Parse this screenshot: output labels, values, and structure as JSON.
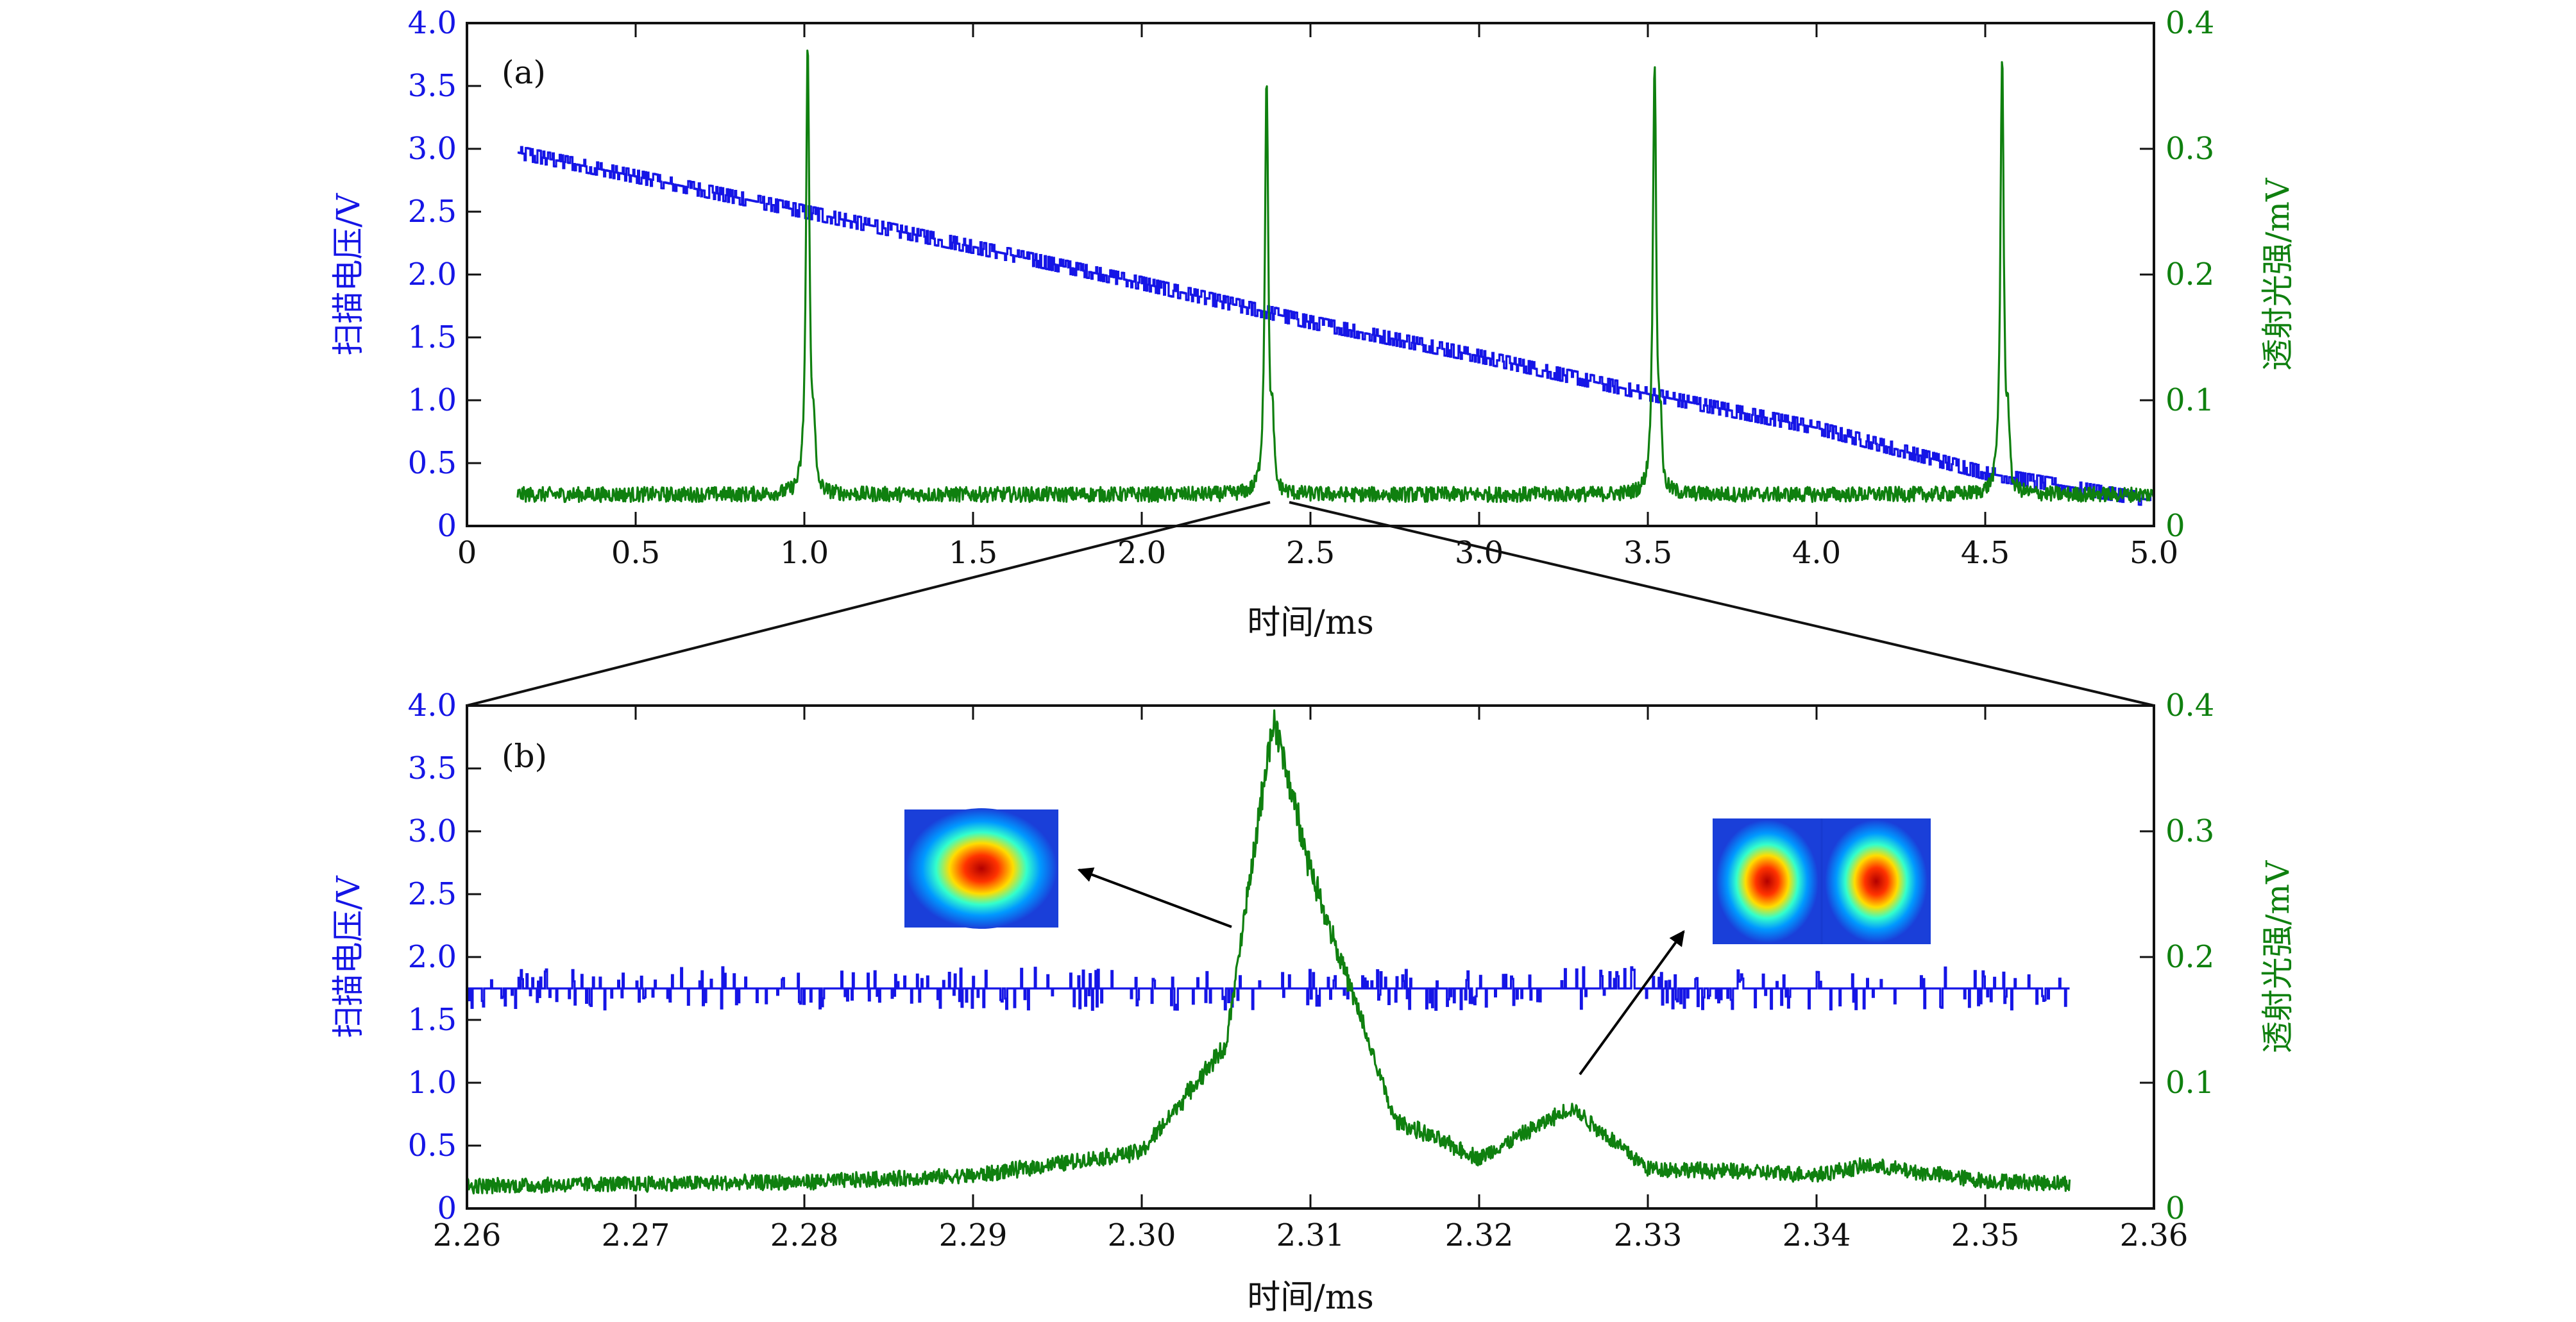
{
  "colors": {
    "voltage": "#1515e6",
    "intensity": "#0f800f",
    "axis": "#111111"
  },
  "chart_data": [
    {
      "type": "line",
      "panel_label": "(a)",
      "xlabel": "时间/ms",
      "ylabel_left": "扫描电压/V",
      "ylabel_right": "透射光强/mV",
      "xlim": [
        0,
        5.0
      ],
      "ylim_left": [
        0,
        4.0
      ],
      "ylim_right": [
        0,
        0.4
      ],
      "x_ticks": [
        "0",
        "0.5",
        "1.0",
        "1.5",
        "2.0",
        "2.5",
        "3.0",
        "3.5",
        "4.0",
        "4.5",
        "5.0"
      ],
      "y_ticks_left": [
        "0",
        "0.5",
        "1.0",
        "1.5",
        "2.0",
        "2.5",
        "3.0",
        "3.5",
        "4.0"
      ],
      "y_ticks_right": [
        "0",
        "0.1",
        "0.2",
        "0.3",
        "0.4"
      ],
      "grid": false,
      "series": [
        {
          "axis": "left",
          "x": [
            0.15,
            0.5,
            1.0,
            1.5,
            2.0,
            2.5,
            3.0,
            3.5,
            4.0,
            4.5,
            5.0
          ],
          "y": [
            2.97,
            2.78,
            2.5,
            2.22,
            1.93,
            1.62,
            1.35,
            1.05,
            0.78,
            0.42,
            0.2
          ]
        },
        {
          "axis": "right",
          "baseline": 0.025,
          "x": [
            0.15,
            1.01,
            2.37,
            3.52,
            4.55,
            5.0
          ],
          "y": [
            0.025,
            0.387,
            0.362,
            0.376,
            0.376,
            0.025
          ]
        }
      ]
    },
    {
      "type": "line",
      "panel_label": "(b)",
      "xlabel": "时间/ms",
      "ylabel_left": "扫描电压/V",
      "ylabel_right": "透射光强/mV",
      "xlim": [
        2.26,
        2.36
      ],
      "ylim_left": [
        0,
        4.0
      ],
      "ylim_right": [
        0,
        0.4
      ],
      "x_ticks": [
        "2.26",
        "2.27",
        "2.28",
        "2.29",
        "2.30",
        "2.31",
        "2.32",
        "2.33",
        "2.34",
        "2.35",
        "2.36"
      ],
      "y_ticks_left": [
        "0",
        "0.5",
        "1.0",
        "1.5",
        "2.0",
        "2.5",
        "3.0",
        "3.5",
        "4.0"
      ],
      "y_ticks_right": [
        "0",
        "0.1",
        "0.2",
        "0.3",
        "0.4"
      ],
      "grid": false,
      "series": [
        {
          "axis": "left",
          "x": [
            2.26,
            2.355
          ],
          "y": [
            1.75,
            1.75
          ]
        },
        {
          "axis": "right",
          "x": [
            2.26,
            2.28,
            2.29,
            2.3,
            2.305,
            2.3078,
            2.31,
            2.315,
            2.32,
            2.3255,
            2.33,
            2.34,
            2.343,
            2.35,
            2.355
          ],
          "y": [
            0.018,
            0.021,
            0.026,
            0.045,
            0.13,
            0.39,
            0.27,
            0.07,
            0.04,
            0.08,
            0.032,
            0.027,
            0.034,
            0.022,
            0.02
          ]
        }
      ]
    }
  ]
}
